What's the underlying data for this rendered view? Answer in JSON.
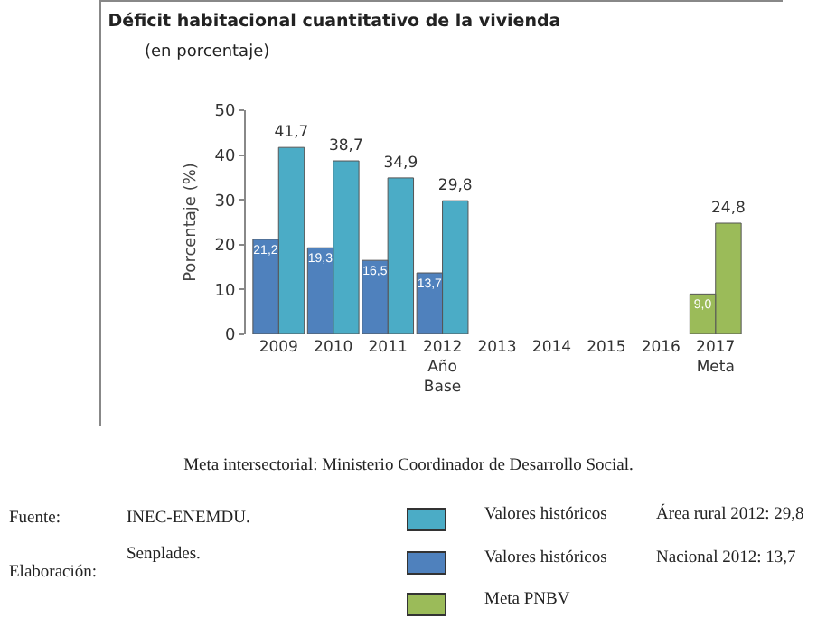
{
  "chart_data": {
    "type": "bar",
    "title": "Déficit habitacional cuantitativo de la vivienda",
    "subtitle": "(en porcentaje)",
    "ylabel": "Porcentaje (%)",
    "categories": [
      "2009",
      "2010",
      "2011",
      "2012\nAño\nBase",
      "2013",
      "2014",
      "2015",
      "2016",
      "2017\nMeta"
    ],
    "ylim": [
      0,
      50
    ],
    "yticks": [
      0,
      10,
      20,
      30,
      40,
      50
    ],
    "legend": "bottom",
    "series": [
      {
        "name": "Valores históricos",
        "color": "#4bacc6",
        "values": [
          41.7,
          38.7,
          34.9,
          29.8,
          null,
          null,
          null,
          null,
          null
        ],
        "value_labels": [
          "41,7",
          "38,7",
          "34,9",
          "29,8",
          null,
          null,
          null,
          null,
          null
        ]
      },
      {
        "name": "Valores históricos",
        "color": "#4f81bd",
        "values": [
          21.2,
          19.3,
          16.5,
          13.7,
          null,
          null,
          null,
          null,
          null
        ],
        "value_labels": [
          "21,2",
          "19,3",
          "16,5",
          "13,7",
          null,
          null,
          null,
          null,
          null
        ]
      },
      {
        "name": "Meta PNBV",
        "color": "#9bbb59",
        "values": [
          null,
          null,
          null,
          null,
          null,
          null,
          null,
          null,
          24.8
        ],
        "value_labels": [
          null,
          null,
          null,
          null,
          null,
          null,
          null,
          null,
          "24,8"
        ]
      },
      {
        "color": "#9bbb59",
        "values": [
          null,
          null,
          null,
          null,
          null,
          null,
          null,
          null,
          9.0
        ],
        "value_labels": [
          null,
          null,
          null,
          null,
          null,
          null,
          null,
          null,
          "9,0"
        ]
      }
    ],
    "annotations": [
      "Área rural  2012: 29,8",
      "Nacional 2012: 13,7",
      "Meta intersectorial: Ministerio Coordinador de Desarrollo Social.",
      "Fuente:",
      "INEC-ENEMDU.",
      "Elaboración:",
      "Senplades."
    ]
  }
}
